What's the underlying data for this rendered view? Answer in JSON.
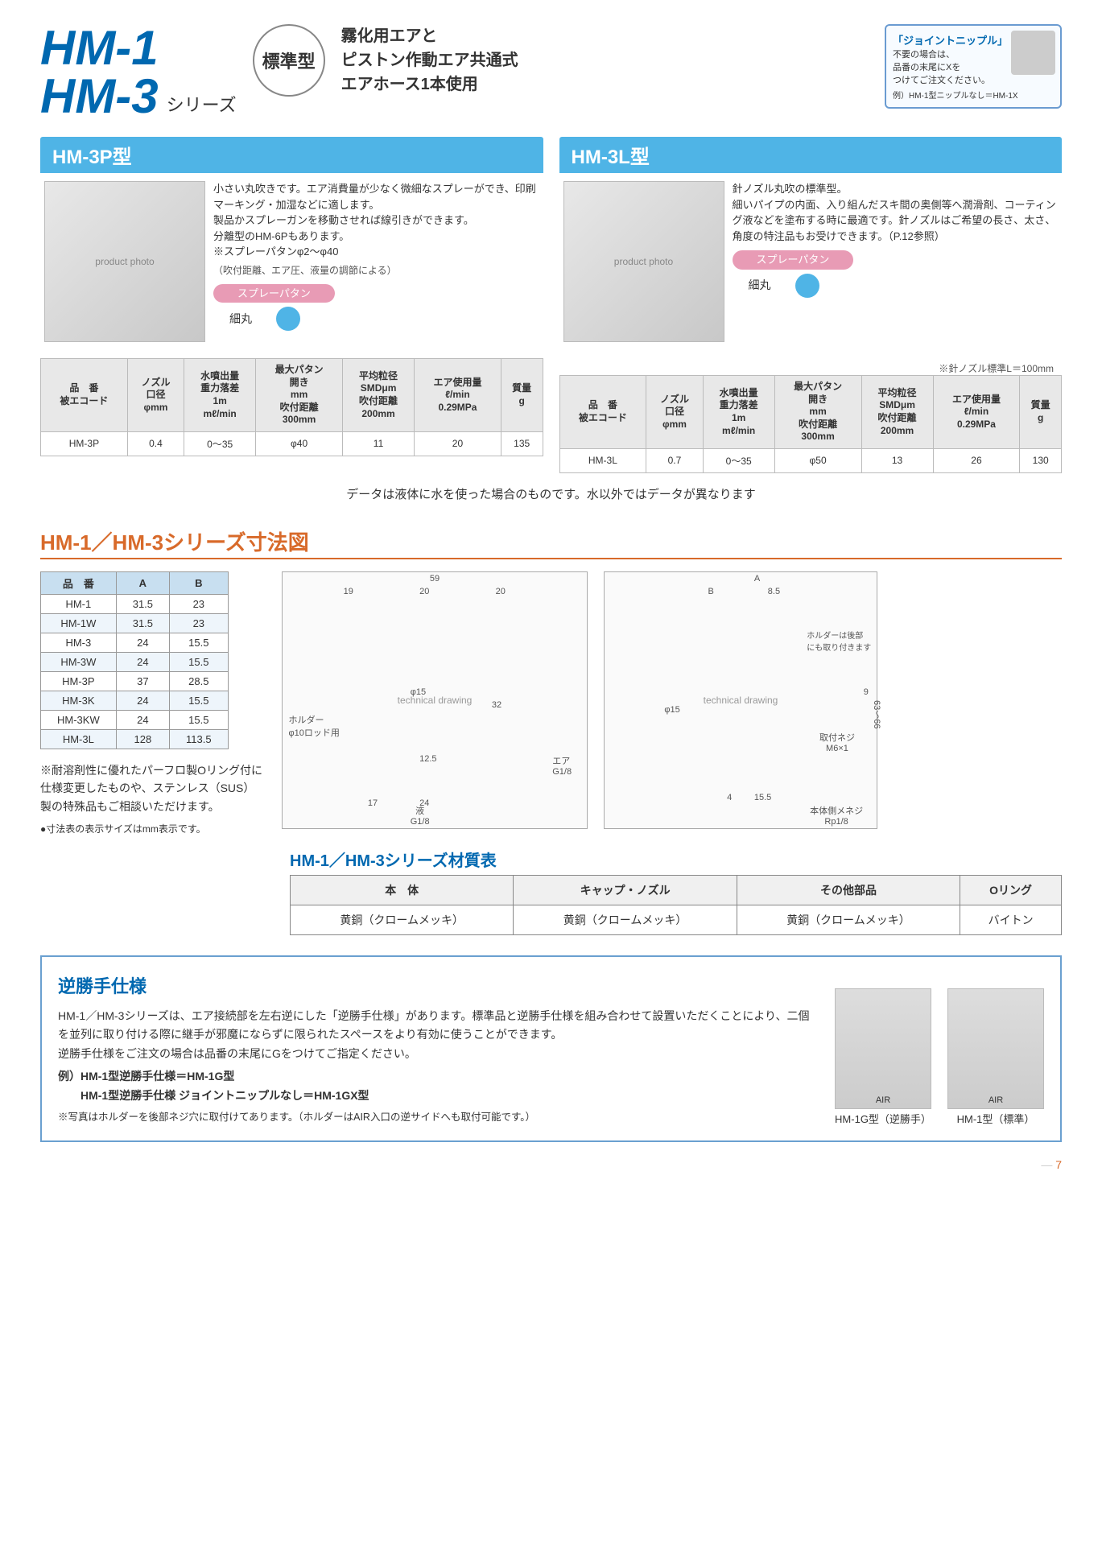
{
  "header": {
    "title_line1": "HM-1",
    "title_line2": "HM-3",
    "series_label": "シリーズ",
    "std_label": "標準型",
    "desc_line1": "霧化用エアと",
    "desc_line2": "ピストン作動エア共通式",
    "desc_line3": "エアホース1本使用"
  },
  "joint_nipple": {
    "title": "「ジョイントニップル」",
    "line1": "不要の場合は、",
    "line2": "品番の末尾にXを",
    "line3": "つけてご注文ください。",
    "example": "例）HM-1型ニップルなし＝HM-1X"
  },
  "models": {
    "hm3p": {
      "header": "HM-3P型",
      "desc": "小さい丸吹きです。エア消費量が少なく微細なスプレーができ、印刷マーキング・加湿などに適します。\n製品かスプレーガンを移動させれば線引きができます。\n分離型のHM-6Pもあります。\n※スプレーパタンφ2～φ40",
      "desc_sub": "（吹付距離、エア圧、液量の調節による）",
      "pattern_badge": "スプレーパタン",
      "pattern_label": "細丸"
    },
    "hm3l": {
      "header": "HM-3L型",
      "desc": "針ノズル丸吹の標準型。\n細いパイプの内面、入り組んだスキ間の奥側等へ潤滑剤、コーティング液などを塗布する時に最適です。針ノズルはご希望の長さ、太さ、角度の特注品もお受けできます。（P.12参照）",
      "needle_note": "※針ノズル標準L＝100mm",
      "pattern_badge": "スプレーパタン",
      "pattern_label": "細丸"
    }
  },
  "spec_headers": [
    "品　番\n被エコード",
    "ノズル\n口径\nφmm",
    "水噴出量\n重力落差\n1m\nmℓ/min",
    "最大パタン\n開き\nmm\n吹付距離\n300mm",
    "平均粒径\nSMDμm\n吹付距離\n200mm",
    "エア使用量\nℓ/min\n0.29MPa",
    "質量\ng"
  ],
  "spec_hm3p": [
    "HM-3P",
    "0.4",
    "0～35",
    "φ40",
    "11",
    "20",
    "135"
  ],
  "spec_hm3l": [
    "HM-3L",
    "0.7",
    "0～35",
    "φ50",
    "13",
    "26",
    "130"
  ],
  "data_note": "データは液体に水を使った場合のものです。水以外ではデータが異なります",
  "dim_section_title": "HM-1／HM-3シリーズ寸法図",
  "dim_headers": [
    "品　番",
    "A",
    "B"
  ],
  "dim_rows": [
    [
      "HM-1",
      "31.5",
      "23"
    ],
    [
      "HM-1W",
      "31.5",
      "23"
    ],
    [
      "HM-3",
      "24",
      "15.5"
    ],
    [
      "HM-3W",
      "24",
      "15.5"
    ],
    [
      "HM-3P",
      "37",
      "28.5"
    ],
    [
      "HM-3K",
      "24",
      "15.5"
    ],
    [
      "HM-3KW",
      "24",
      "15.5"
    ],
    [
      "HM-3L",
      "128",
      "113.5"
    ]
  ],
  "dim_note": "※耐溶剤性に優れたパーフロ製Oリング付に仕様変更したものや、ステンレス（SUS）製の特殊品もご相談いただけます。",
  "dim_note_small": "●寸法表の表示サイズはmm表示です。",
  "drawing1_labels": {
    "w59": "59",
    "w19": "19",
    "w20a": "20",
    "w20b": "20",
    "d15": "φ15",
    "h32": "32",
    "h125": "12.5",
    "w17": "17",
    "w24": "24",
    "air": "エア\nG1/8",
    "liq": "液\nG1/8",
    "holder": "ホルダー\nφ10ロッド用"
  },
  "drawing2_labels": {
    "A": "A",
    "B": "B",
    "w85": "8.5",
    "d15": "φ15",
    "h9": "9",
    "h63": "63～66",
    "w4": "4",
    "w155": "15.5",
    "screw": "取付ネジ\nM6×1",
    "thread": "本体側メネジ\nRp1/8",
    "holder_rear": "ホルダーは後部\nにも取り付きます"
  },
  "material": {
    "title": "HM-1／HM-3シリーズ材質表",
    "headers": [
      "本　体",
      "キャップ・ノズル",
      "その他部品",
      "Oリング"
    ],
    "row": [
      "黄銅（クロームメッキ）",
      "黄銅（クロームメッキ）",
      "黄銅（クロームメッキ）",
      "バイトン"
    ]
  },
  "reverse": {
    "title": "逆勝手仕様",
    "body": "HM-1／HM-3シリーズは、エア接続部を左右逆にした「逆勝手仕様」があります。標準品と逆勝手仕様を組み合わせて設置いただくことにより、二個を並列に取り付ける際に継手が邪魔にならずに限られたスペースをより有効に使うことができます。\n逆勝手仕様をご注文の場合は品番の末尾にGをつけてご指定ください。",
    "ex1": "例）HM-1型逆勝手仕様＝HM-1G型",
    "ex2": "　　HM-1型逆勝手仕様 ジョイントニップルなし＝HM-1GX型",
    "foot": "※写真はホルダーを後部ネジ穴に取付けてあります。（ホルダーはAIR入口の逆サイドへも取付可能です。）",
    "cap1": "HM-1G型（逆勝手）",
    "cap2": "HM-1型（標準）"
  },
  "page_number": "7"
}
